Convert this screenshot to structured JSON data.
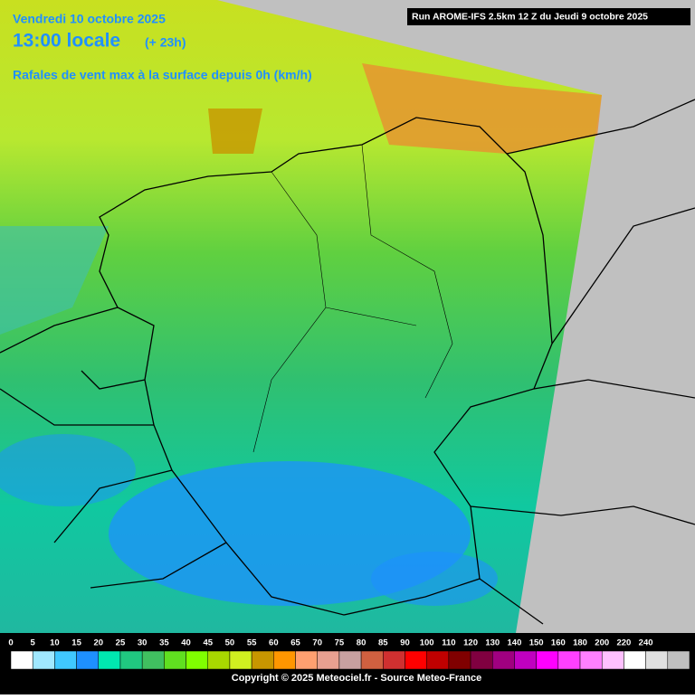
{
  "header": {
    "date": "Vendredi 10 octobre 2025",
    "time": "13:00 locale",
    "lead": "(+ 23h)",
    "run": "Run AROME-IFS 2.5km 12 Z du Jeudi 9 octobre 2025",
    "subtitle": "Rafales de vent max à la surface depuis 0h (km/h)"
  },
  "legend": {
    "labels": [
      0,
      5,
      10,
      15,
      20,
      25,
      30,
      35,
      40,
      45,
      50,
      55,
      60,
      65,
      70,
      75,
      80,
      85,
      90,
      100,
      110,
      120,
      130,
      140,
      150,
      160,
      180,
      200,
      220,
      240
    ],
    "colors": [
      "#ffffff",
      "#a0e8ff",
      "#40c8ff",
      "#1e90ff",
      "#00e8b0",
      "#20c880",
      "#40c060",
      "#60e020",
      "#80ff00",
      "#a8d800",
      "#d0f020",
      "#c89600",
      "#ff9600",
      "#ffa070",
      "#e8a090",
      "#c8a0a0",
      "#d06040",
      "#d03030",
      "#ff0000",
      "#c00000",
      "#800000",
      "#800040",
      "#a00080",
      "#c000c0",
      "#ff00ff",
      "#ff40ff",
      "#ff80ff",
      "#ffc0ff",
      "#ffffff",
      "#e0e0e0",
      "#c0c0c0"
    ]
  },
  "footer": "Copyright © 2025 Meteociel.fr - Source Meteo-France"
}
